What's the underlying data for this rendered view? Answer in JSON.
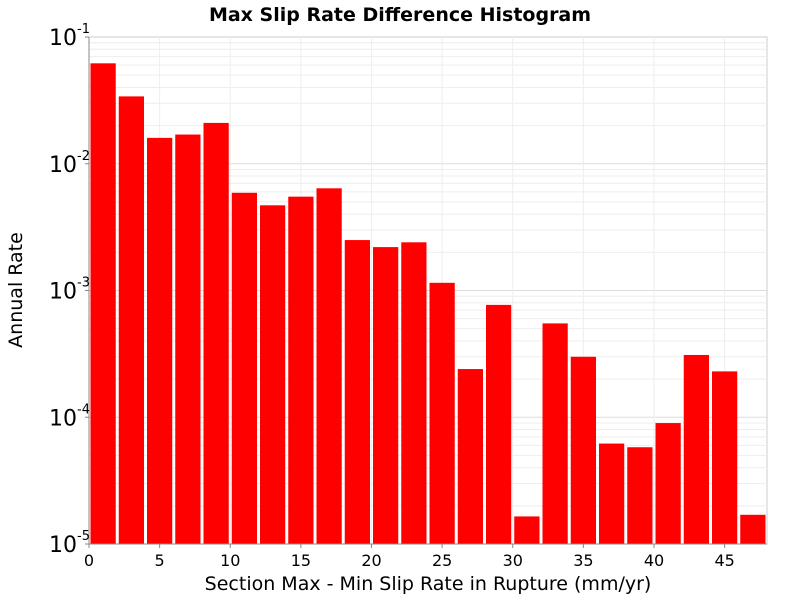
{
  "chart_data": {
    "type": "bar",
    "title": "Max Slip Rate Difference Histogram",
    "xlabel": "Section Max - Min Slip Rate in Rupture (mm/yr)",
    "ylabel": "Annual Rate",
    "yscale": "log",
    "ylim": [
      1e-05,
      0.1
    ],
    "xlim": [
      0,
      48
    ],
    "bin_width": 2,
    "bar_color": "#ff0000",
    "grid": true,
    "xticks": [
      "0",
      "5",
      "10",
      "15",
      "20",
      "25",
      "30",
      "35",
      "40",
      "45"
    ],
    "yticks": [
      {
        "base": "10",
        "exp": "-5"
      },
      {
        "base": "10",
        "exp": "-4"
      },
      {
        "base": "10",
        "exp": "-3"
      },
      {
        "base": "10",
        "exp": "-2"
      },
      {
        "base": "10",
        "exp": "-1"
      }
    ],
    "x": [
      1,
      3,
      5,
      7,
      9,
      11,
      13,
      15,
      17,
      19,
      21,
      23,
      25,
      27,
      29,
      31,
      33,
      35,
      37,
      39,
      41,
      43,
      45,
      47
    ],
    "values": [
      0.062,
      0.034,
      0.016,
      0.017,
      0.021,
      0.0059,
      0.0047,
      0.0055,
      0.0064,
      0.0025,
      0.0022,
      0.0024,
      0.00115,
      0.00024,
      0.00077,
      1.65e-05,
      0.00055,
      0.0003,
      6.2e-05,
      5.8e-05,
      9e-05,
      0.00031,
      0.00023,
      1.7e-05
    ]
  }
}
